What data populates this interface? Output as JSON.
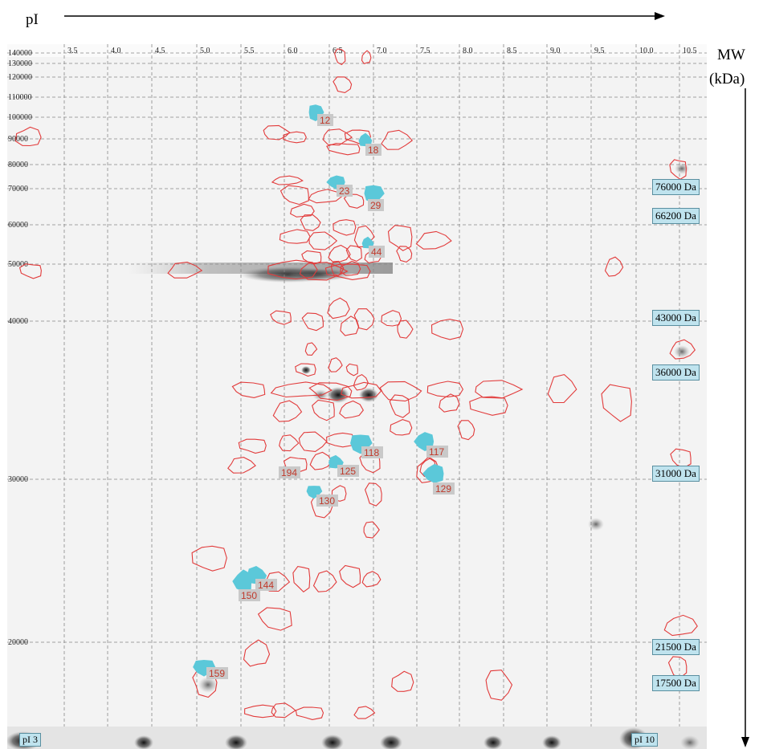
{
  "axes": {
    "x_title": "pI",
    "y_title_line1": "MW",
    "y_title_line2": "(kDa)"
  },
  "pi_ticks": [
    "3.5",
    "4.0",
    "4.5",
    "5.0",
    "5.5",
    "6.0",
    "6.5",
    "7.0",
    "7.5",
    "8.0",
    "8.5",
    "9.0",
    "9.5",
    "10.0",
    "10.5"
  ],
  "mw_ticks": [
    "140000",
    "130000",
    "120000",
    "110000",
    "100000",
    "90000",
    "80000",
    "70000",
    "60000",
    "50000",
    "40000",
    "30000",
    "20000"
  ],
  "mw_markers": [
    "76000 Da",
    "66200 Da",
    "43000 Da",
    "36000 Da",
    "31000 Da",
    "21500 Da",
    "17500 Da"
  ],
  "pi_markers": [
    "pI 3",
    "pI 10"
  ],
  "spot_labels": [
    "12",
    "18",
    "23",
    "29",
    "44",
    "117",
    "118",
    "125",
    "129",
    "130",
    "144",
    "150",
    "159",
    "194"
  ],
  "colors": {
    "outline": "#e23b3b",
    "highlight": "#5bc8d9",
    "label_bg": "#c9c9c9",
    "label_text": "#c0392b",
    "marker_bg": "#bfe3ee"
  }
}
